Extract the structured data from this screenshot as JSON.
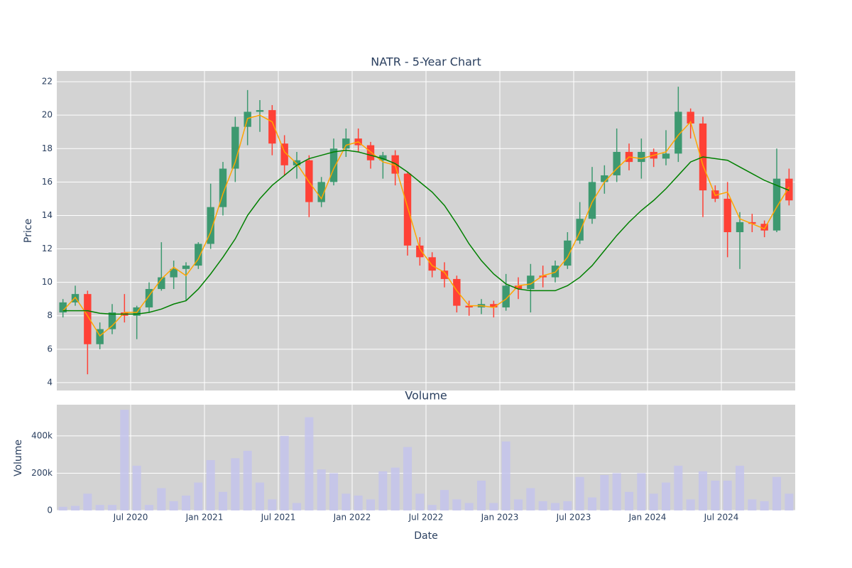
{
  "chart_data": [
    {
      "type": "candlestick",
      "title": "NATR - 5-Year Chart",
      "y_label": "Price",
      "x": [
        "2020-01",
        "2020-02",
        "2020-03",
        "2020-04",
        "2020-05",
        "2020-06",
        "2020-07",
        "2020-08",
        "2020-09",
        "2020-10",
        "2020-11",
        "2020-12",
        "2021-01",
        "2021-02",
        "2021-03",
        "2021-04",
        "2021-05",
        "2021-06",
        "2021-07",
        "2021-08",
        "2021-09",
        "2021-10",
        "2021-11",
        "2021-12",
        "2022-01",
        "2022-02",
        "2022-03",
        "2022-04",
        "2022-05",
        "2022-06",
        "2022-07",
        "2022-08",
        "2022-09",
        "2022-10",
        "2022-11",
        "2022-12",
        "2023-01",
        "2023-02",
        "2023-03",
        "2023-04",
        "2023-05",
        "2023-06",
        "2023-07",
        "2023-08",
        "2023-09",
        "2023-10",
        "2023-11",
        "2023-12",
        "2024-01",
        "2024-02",
        "2024-03",
        "2024-04",
        "2024-05",
        "2024-06",
        "2024-07",
        "2024-08",
        "2024-09",
        "2024-10",
        "2024-11",
        "2024-12"
      ],
      "open": [
        8.2,
        8.8,
        9.3,
        6.3,
        7.2,
        8.2,
        8.0,
        8.5,
        9.6,
        10.3,
        10.8,
        11.0,
        12.3,
        14.5,
        16.8,
        19.3,
        20.2,
        20.3,
        18.3,
        17.0,
        17.3,
        14.8,
        16.0,
        18.0,
        18.6,
        18.2,
        17.3,
        17.6,
        16.5,
        12.2,
        11.5,
        10.7,
        10.2,
        8.6,
        8.5,
        8.7,
        8.5,
        9.8,
        9.6,
        10.4,
        10.3,
        11.0,
        12.5,
        13.8,
        16.0,
        16.4,
        17.8,
        17.2,
        17.8,
        17.4,
        17.7,
        20.2,
        19.5,
        15.5,
        15.0,
        13.0,
        13.6,
        13.5,
        13.1,
        16.2
      ],
      "high": [
        9.0,
        9.8,
        9.5,
        7.6,
        8.7,
        9.3,
        8.6,
        10.0,
        12.4,
        11.3,
        11.2,
        12.4,
        15.9,
        17.2,
        19.9,
        21.5,
        20.9,
        20.6,
        18.8,
        17.8,
        17.6,
        16.3,
        18.6,
        19.2,
        19.2,
        18.4,
        17.8,
        17.9,
        16.6,
        12.7,
        11.8,
        11.2,
        10.4,
        8.9,
        9.0,
        8.9,
        10.5,
        10.3,
        11.1,
        11.0,
        11.3,
        13.0,
        14.8,
        16.9,
        17.0,
        19.2,
        18.3,
        18.6,
        18.0,
        19.1,
        21.7,
        20.4,
        19.9,
        15.8,
        16.0,
        14.2,
        14.1,
        13.7,
        18.0,
        16.8
      ],
      "low": [
        7.9,
        8.6,
        4.5,
        6.0,
        6.9,
        7.6,
        6.6,
        8.2,
        9.5,
        9.6,
        8.9,
        10.8,
        12.0,
        14.0,
        16.0,
        18.2,
        19.0,
        17.6,
        16.4,
        16.2,
        13.9,
        14.5,
        15.8,
        17.5,
        17.8,
        16.8,
        16.2,
        15.8,
        11.6,
        11.0,
        10.3,
        9.7,
        8.2,
        8.0,
        8.1,
        7.9,
        8.3,
        9.0,
        8.2,
        9.7,
        10.0,
        10.8,
        12.3,
        13.5,
        15.3,
        16.0,
        16.7,
        16.2,
        16.9,
        17.0,
        17.2,
        18.6,
        13.9,
        14.8,
        11.5,
        10.8,
        13.0,
        12.7,
        13.0,
        14.6
      ],
      "close": [
        8.8,
        9.3,
        6.3,
        7.2,
        8.2,
        8.0,
        8.5,
        9.6,
        10.3,
        10.8,
        11.0,
        12.3,
        14.5,
        16.8,
        19.3,
        20.2,
        20.3,
        18.3,
        17.0,
        17.3,
        14.8,
        16.0,
        18.0,
        18.6,
        18.2,
        17.3,
        17.6,
        16.5,
        12.2,
        11.5,
        10.7,
        10.2,
        8.6,
        8.5,
        8.7,
        8.5,
        9.8,
        9.6,
        10.4,
        10.3,
        11.0,
        12.5,
        13.8,
        16.0,
        16.4,
        17.8,
        17.2,
        17.8,
        17.4,
        17.7,
        20.2,
        19.5,
        15.5,
        15.0,
        13.0,
        13.6,
        13.5,
        13.1,
        16.2,
        14.9
      ],
      "increasing_color": "#3d9970",
      "decreasing_color": "#ff4136",
      "series": [
        {
          "color": "#ffa500",
          "values": [
            8.3,
            9.1,
            8.0,
            6.8,
            7.4,
            8.2,
            8.2,
            9.2,
            10.2,
            10.9,
            10.4,
            11.4,
            13.0,
            15.3,
            17.2,
            19.8,
            20.0,
            19.6,
            17.8,
            17.1,
            16.0,
            15.0,
            16.8,
            18.2,
            18.4,
            17.8,
            17.2,
            17.0,
            14.5,
            12.0,
            11.0,
            10.6,
            9.5,
            8.6,
            8.6,
            8.5,
            9.0,
            9.8,
            9.9,
            10.4,
            10.6,
            11.5,
            13.0,
            14.8,
            16.0,
            16.8,
            17.5,
            17.4,
            17.6,
            17.8,
            18.8,
            19.6,
            17.0,
            15.2,
            15.4,
            13.8,
            13.5,
            13.2,
            14.5,
            15.7
          ]
        },
        {
          "color": "#008000",
          "values": [
            8.3,
            8.3,
            8.3,
            8.15,
            8.1,
            8.1,
            8.1,
            8.2,
            8.4,
            8.7,
            8.9,
            9.6,
            10.5,
            11.5,
            12.6,
            14.0,
            15.0,
            15.8,
            16.4,
            17.0,
            17.4,
            17.6,
            17.8,
            17.9,
            17.8,
            17.6,
            17.4,
            17.1,
            16.6,
            16.0,
            15.4,
            14.6,
            13.5,
            12.3,
            11.3,
            10.5,
            9.9,
            9.6,
            9.5,
            9.5,
            9.5,
            9.8,
            10.3,
            11.0,
            11.9,
            12.8,
            13.6,
            14.3,
            14.9,
            15.6,
            16.4,
            17.2,
            17.5,
            17.4,
            17.3,
            16.9,
            16.5,
            16.1,
            15.8,
            15.5
          ]
        }
      ],
      "xlim": [
        "2020-01",
        "2025-01"
      ],
      "ylim": [
        3.53,
        22.64
      ],
      "yticks": [
        4,
        6,
        8,
        10,
        12,
        14,
        16,
        18,
        20,
        22
      ],
      "grid": true
    },
    {
      "type": "bar",
      "title": "Volume",
      "y_label": "Volume",
      "x_label": "Date",
      "x": [
        "2020-01",
        "2020-02",
        "2020-03",
        "2020-04",
        "2020-05",
        "2020-06",
        "2020-07",
        "2020-08",
        "2020-09",
        "2020-10",
        "2020-11",
        "2020-12",
        "2021-01",
        "2021-02",
        "2021-03",
        "2021-04",
        "2021-05",
        "2021-06",
        "2021-07",
        "2021-08",
        "2021-09",
        "2021-10",
        "2021-11",
        "2021-12",
        "2022-01",
        "2022-02",
        "2022-03",
        "2022-04",
        "2022-05",
        "2022-06",
        "2022-07",
        "2022-08",
        "2022-09",
        "2022-10",
        "2022-11",
        "2022-12",
        "2023-01",
        "2023-02",
        "2023-03",
        "2023-04",
        "2023-05",
        "2023-06",
        "2023-07",
        "2023-08",
        "2023-09",
        "2023-10",
        "2023-11",
        "2023-12",
        "2024-01",
        "2024-02",
        "2024-03",
        "2024-04",
        "2024-05",
        "2024-06",
        "2024-07",
        "2024-08",
        "2024-09",
        "2024-10",
        "2024-11",
        "2024-12"
      ],
      "values": [
        20000,
        25000,
        90000,
        30000,
        30000,
        540000,
        240000,
        30000,
        120000,
        50000,
        80000,
        150000,
        270000,
        100000,
        280000,
        320000,
        150000,
        60000,
        400000,
        40000,
        500000,
        220000,
        200000,
        90000,
        80000,
        60000,
        210000,
        230000,
        340000,
        90000,
        30000,
        110000,
        60000,
        40000,
        160000,
        40000,
        370000,
        60000,
        120000,
        50000,
        40000,
        50000,
        180000,
        70000,
        190000,
        200000,
        100000,
        200000,
        90000,
        150000,
        240000,
        60000,
        210000,
        160000,
        160000,
        240000,
        60000,
        50000,
        180000,
        90000
      ],
      "color": "#c3c3ee",
      "xlim": [
        "2020-01",
        "2025-01"
      ],
      "ylim": [
        0,
        567000
      ],
      "yticks": [
        0,
        {
          "value": 200000,
          "label": "200k"
        },
        {
          "value": 400000,
          "label": "400k"
        }
      ],
      "xticks": [
        {
          "value": "2020-07",
          "label": "Jul 2020"
        },
        {
          "value": "2021-01",
          "label": "Jan 2021"
        },
        {
          "value": "2021-07",
          "label": "Jul 2021"
        },
        {
          "value": "2022-01",
          "label": "Jan 2022"
        },
        {
          "value": "2022-07",
          "label": "Jul 2022"
        },
        {
          "value": "2023-01",
          "label": "Jan 2023"
        },
        {
          "value": "2023-07",
          "label": "Jul 2023"
        },
        {
          "value": "2024-01",
          "label": "Jan 2024"
        },
        {
          "value": "2024-07",
          "label": "Jul 2024"
        }
      ],
      "grid": true
    }
  ]
}
